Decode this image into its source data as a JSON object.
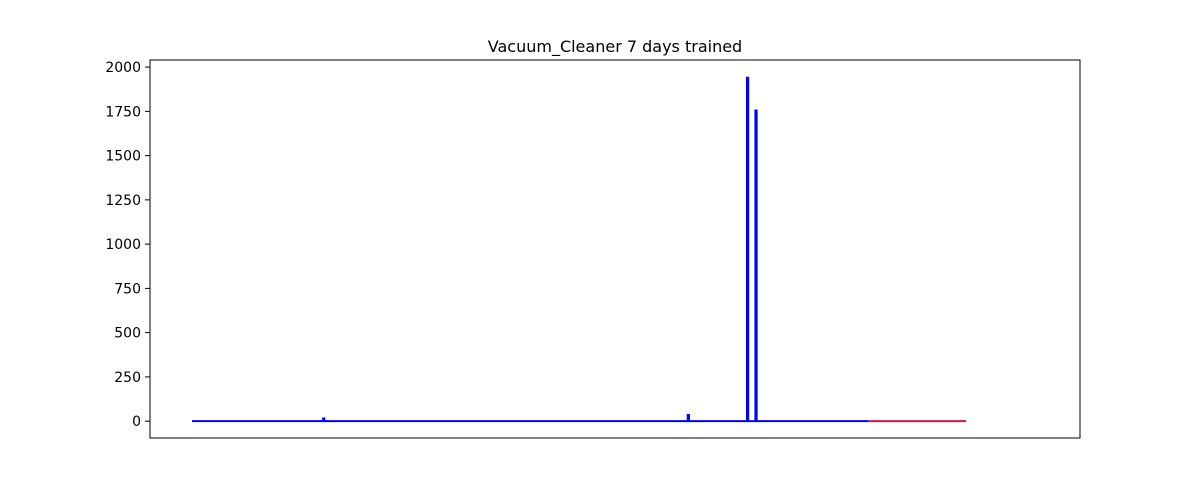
{
  "chart_data": {
    "type": "line",
    "title": "Vacuum_Cleaner 7 days trained",
    "xlabel": "",
    "ylabel": "",
    "x_ticks_visible": false,
    "ylim": [
      -95,
      2040
    ],
    "xlim": [
      0,
      1000
    ],
    "yticks": [
      0,
      250,
      500,
      750,
      1000,
      1250,
      1500,
      1750,
      2000
    ],
    "grid": false,
    "series": [
      {
        "color": "#0000ff",
        "style": "spikes",
        "x_range": [
          0,
          800
        ],
        "baseline": 0,
        "spikes": [
          {
            "x": 155,
            "y": 15
          },
          {
            "x": 586,
            "y": 35
          },
          {
            "x": 656,
            "y": 1940
          },
          {
            "x": 666,
            "y": 1755
          }
        ]
      },
      {
        "color": "#dc143c",
        "style": "flat",
        "x_range": [
          800,
          915
        ],
        "baseline": 0
      }
    ]
  }
}
